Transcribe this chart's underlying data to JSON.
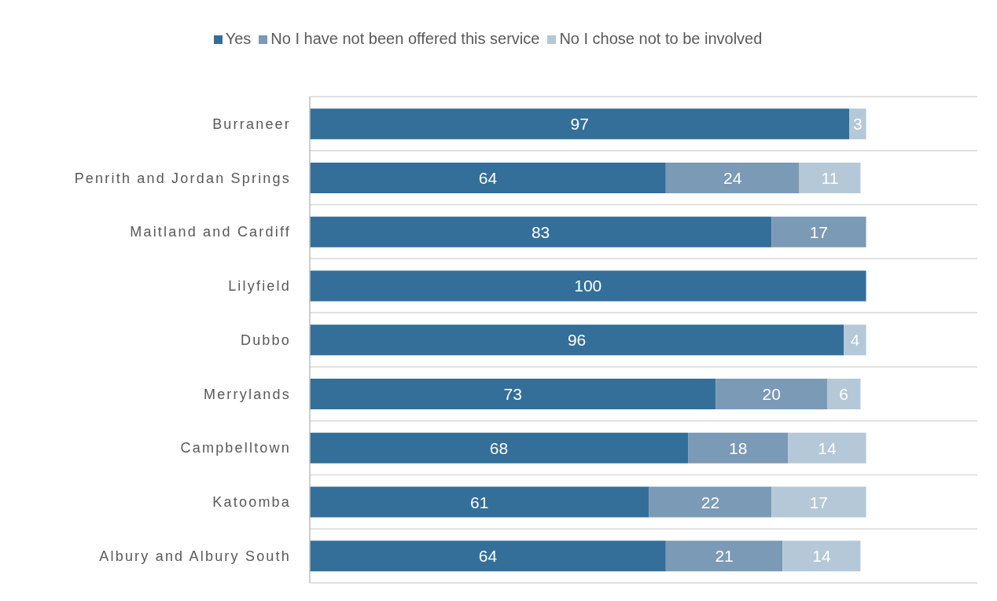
{
  "chart_data": {
    "type": "bar",
    "orientation": "horizontal",
    "stacked": true,
    "data_labels": true,
    "grid": "y",
    "legend": "top",
    "categories": [
      "Burraneer",
      "Penrith and Jordan Springs",
      "Maitland and Cardiff",
      "Lilyfield",
      "Dubbo",
      "Merrylands",
      "Campbelltown",
      "Katoomba",
      "Albury and Albury South"
    ],
    "series": [
      {
        "name": "Yes",
        "color": "#336f99",
        "values": [
          97,
          64,
          83,
          100,
          96,
          73,
          68,
          61,
          64
        ]
      },
      {
        "name": "No I have not been offered this service",
        "color": "#7a9ab6",
        "values": [
          null,
          24,
          17,
          null,
          null,
          20,
          18,
          22,
          21
        ]
      },
      {
        "name": "No I chose not to be involved",
        "color": "#b4c8d8",
        "values": [
          3,
          11,
          null,
          null,
          4,
          6,
          14,
          17,
          14
        ]
      }
    ]
  }
}
